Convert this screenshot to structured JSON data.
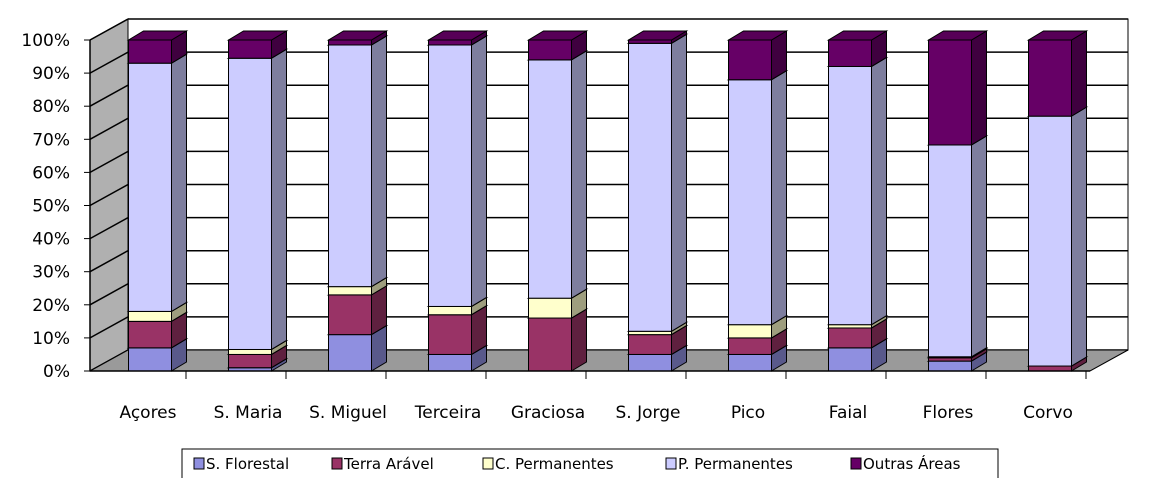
{
  "chart_data": {
    "type": "bar",
    "stacked": true,
    "percent_stacked": true,
    "three_d": true,
    "categories": [
      "Açores",
      "S. Maria",
      "S. Miguel",
      "Terceira",
      "Graciosa",
      "S. Jorge",
      "Pico",
      "Faial",
      "Flores",
      "Corvo"
    ],
    "series": [
      {
        "name": "S. Florestal",
        "color": "#8f8fe0",
        "values": [
          7,
          1,
          11,
          5,
          0,
          5,
          5,
          7,
          3,
          0
        ]
      },
      {
        "name": "Terra Arável",
        "color": "#993366",
        "values": [
          8,
          4,
          12,
          12,
          16,
          6,
          5,
          6,
          1,
          1.5
        ]
      },
      {
        "name": "C. Permanentes",
        "color": "#ffffcc",
        "values": [
          3,
          1.5,
          2.5,
          2.5,
          6,
          1,
          4,
          1,
          0.3,
          0
        ]
      },
      {
        "name": "P. Permanentes",
        "color": "#ccccff",
        "values": [
          75,
          88,
          73,
          79,
          72,
          87,
          74,
          78,
          64,
          75.5
        ]
      },
      {
        "name": "Outras Áreas",
        "color": "#660066",
        "values": [
          7,
          5.5,
          1.5,
          1.5,
          6,
          1,
          12,
          8,
          31.7,
          23
        ]
      }
    ],
    "yticks": [
      "0%",
      "10%",
      "20%",
      "30%",
      "40%",
      "50%",
      "60%",
      "70%",
      "80%",
      "90%",
      "100%"
    ],
    "ylim": [
      0,
      100
    ],
    "grid": true,
    "legend_position": "bottom"
  }
}
